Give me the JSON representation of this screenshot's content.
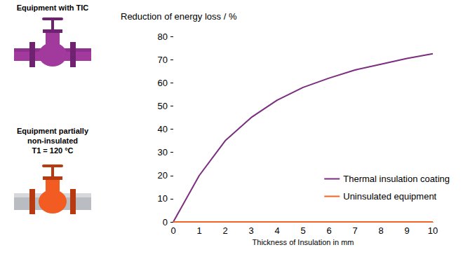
{
  "illustrations": [
    {
      "lines": [
        "Equipment with TIC"
      ]
    },
    {
      "lines": [
        "Equipment partially",
        "non-insulated",
        "T1 = 120 °C"
      ]
    }
  ],
  "chart_data": {
    "type": "line",
    "y_label": "Reduction of energy loss / %",
    "x_label": "Thickness of Insulation in mm",
    "x": [
      0,
      1,
      2,
      3,
      4,
      5,
      6,
      7,
      8,
      9,
      10
    ],
    "series": [
      {
        "name": "Thermal insulation coating",
        "color": "#7b2d80",
        "values": [
          0,
          20,
          35,
          45,
          52.5,
          58,
          62,
          65.5,
          68,
          70.5,
          72.5
        ]
      },
      {
        "name": "Uninsulated equipment",
        "color": "#f26522",
        "values": [
          0,
          0,
          0,
          0,
          0,
          0,
          0,
          0,
          0,
          0,
          0
        ]
      }
    ],
    "xlim": [
      0,
      10
    ],
    "xticks": [
      0,
      1,
      2,
      3,
      4,
      5,
      6,
      7,
      8,
      9,
      10
    ],
    "ylim": [
      0,
      80
    ],
    "yticks": [
      0,
      10,
      20,
      30,
      40,
      50,
      60,
      70,
      80
    ],
    "grid": false,
    "legend": "lower right"
  }
}
